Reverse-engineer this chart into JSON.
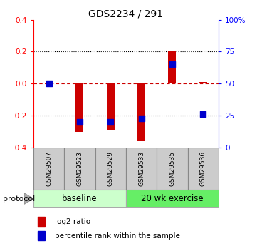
{
  "title": "GDS2234 / 291",
  "samples": [
    "GSM29507",
    "GSM29523",
    "GSM29529",
    "GSM29533",
    "GSM29535",
    "GSM29536"
  ],
  "log2_ratios": [
    0.0,
    -0.3,
    -0.29,
    -0.36,
    0.2,
    0.01
  ],
  "percentile_ranks": [
    50,
    20,
    20,
    23,
    65,
    26
  ],
  "ylim_left": [
    -0.4,
    0.4
  ],
  "ylim_right": [
    0,
    100
  ],
  "yticks_left": [
    -0.4,
    -0.2,
    0.0,
    0.2,
    0.4
  ],
  "yticks_right": [
    0,
    25,
    50,
    75,
    100
  ],
  "bar_color": "#cc0000",
  "dot_color": "#0000cc",
  "hline_zero_color": "#cc0000",
  "bar_width": 0.25,
  "dot_size": 28,
  "sample_box_color": "#cccccc",
  "baseline_color": "#ccffcc",
  "exercise_color": "#66ee66",
  "legend_red_label": "log2 ratio",
  "legend_blue_label": "percentile rank within the sample",
  "protocol_label": "protocol",
  "n_samples": 6
}
